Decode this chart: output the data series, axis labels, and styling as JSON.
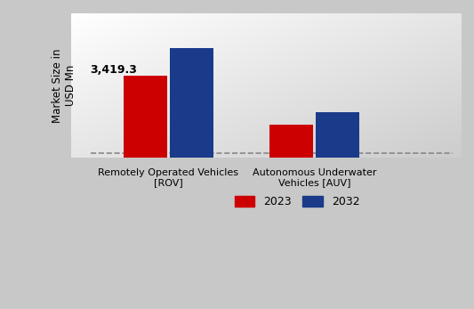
{
  "categories": [
    "Remotely Operated Vehicles\n[ROV]",
    "Autonomous Underwater\nVehicles [AUV]"
  ],
  "values_2023": [
    3419.3,
    1380.0
  ],
  "values_2032": [
    4550.0,
    1900.0
  ],
  "bar_color_2023": "#cc0000",
  "bar_color_2032": "#1a3a8a",
  "ylabel": "Market Size in\nUSD Mn",
  "legend_2023": "2023",
  "legend_2032": "2032",
  "annotation_rov_2023": "3,419.3",
  "bar_width": 0.18,
  "bg_color_light": "#ffffff",
  "bg_color_dark": "#d0d0d0",
  "ylim": [
    0,
    6000
  ],
  "x_positions": [
    0.3,
    0.9
  ]
}
